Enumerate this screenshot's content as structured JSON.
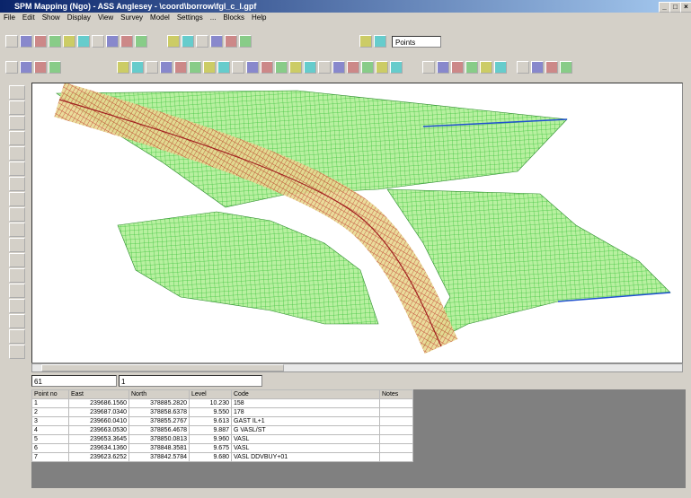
{
  "window": {
    "title": "SPM Mapping (Ngo) - ASS Anglesey - \\coord\\borrow\\fgl_c_l.gpf",
    "controls": [
      "_",
      "□",
      "×"
    ]
  },
  "menu": [
    "File",
    "Edit",
    "Show",
    "Display",
    "View",
    "Survey",
    "Model",
    "Settings",
    "...",
    "Blocks",
    "Help"
  ],
  "toolbar": {
    "dropdown": "Points"
  },
  "status": {
    "field1": "61",
    "field2": "1"
  },
  "table": {
    "headers": [
      "Point no",
      "East",
      "North",
      "Level",
      "Code",
      "Notes"
    ],
    "rows": [
      [
        "1",
        "239686.1560",
        "378885.2820",
        "10.230",
        "158",
        ""
      ],
      [
        "2",
        "239687.0340",
        "378858.6378",
        "9.550",
        "178",
        ""
      ],
      [
        "3",
        "239660.0410",
        "378855.2767",
        "9.613",
        "GAST IL+1",
        ""
      ],
      [
        "4",
        "239663.0530",
        "378856.4678",
        "9.887",
        "G VASL/ST",
        ""
      ],
      [
        "5",
        "239653.3645",
        "378850.0813",
        "9.960",
        "VASL",
        ""
      ],
      [
        "6",
        "239634.1360",
        "378848.3581",
        "9.675",
        "VASL",
        ""
      ],
      [
        "7",
        "239623.6252",
        "378842.5784",
        "9.680",
        "VASL DDVBUY+01",
        ""
      ]
    ]
  }
}
